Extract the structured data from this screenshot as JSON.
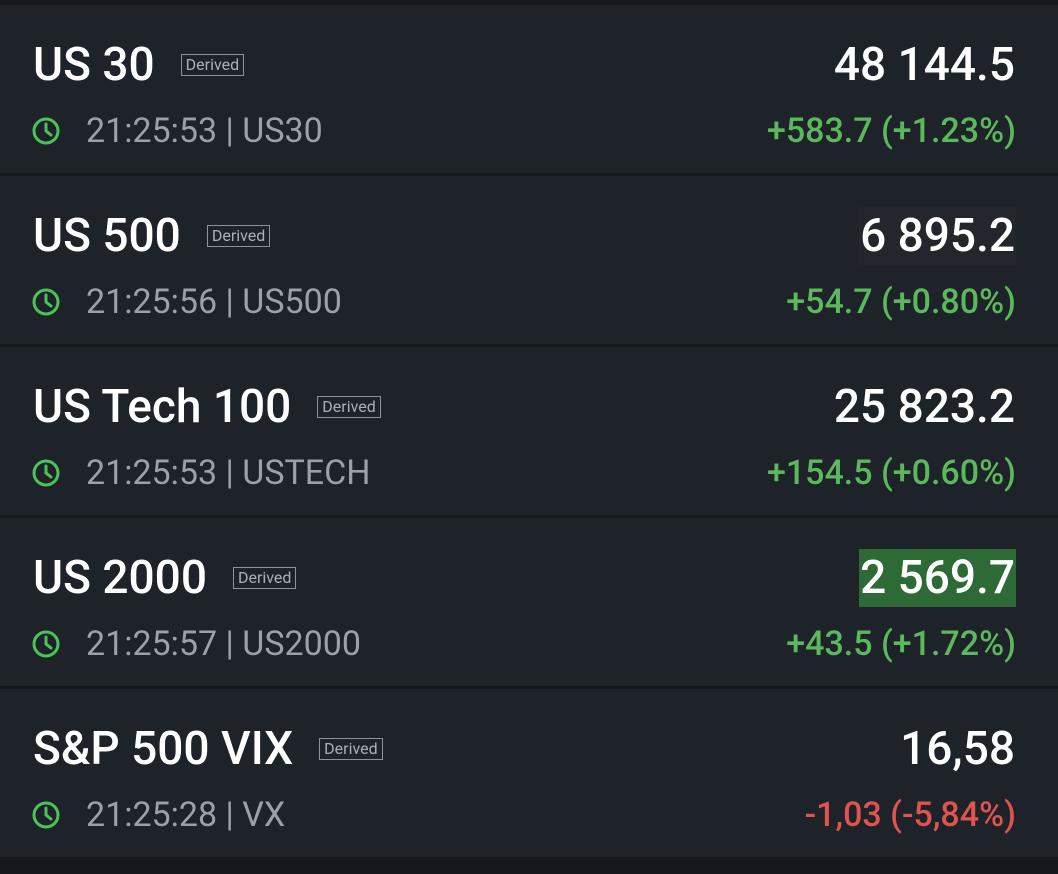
{
  "rows": [
    {
      "name": "US 30",
      "badge": "Derived",
      "meta": "21:25:53 | US30",
      "price": "48 144.5",
      "change": "+583.7 (+1.23%)",
      "change_color": "#5cb85c",
      "price_bg": null
    },
    {
      "name": "US 500",
      "badge": "Derived",
      "meta": "21:25:56 | US500",
      "price": "6 895.2",
      "change": "+54.7 (+0.80%)",
      "change_color": "#5cb85c",
      "price_bg": "#23272d"
    },
    {
      "name": "US Tech 100",
      "badge": "Derived",
      "meta": "21:25:53 | USTECH",
      "price": "25 823.2",
      "change": "+154.5 (+0.60%)",
      "change_color": "#5cb85c",
      "price_bg": null
    },
    {
      "name": "US 2000",
      "badge": "Derived",
      "meta": "21:25:57 | US2000",
      "price": "2 569.7",
      "change": "+43.5 (+1.72%)",
      "change_color": "#5cb85c",
      "price_bg": "#2e6a36"
    },
    {
      "name": "S&P 500 VIX",
      "badge": "Derived",
      "meta": "21:25:28 | VX",
      "price": "16,58",
      "change": "-1,03 (-5,84%)",
      "change_color": "#e0534f",
      "price_bg": null
    }
  ]
}
